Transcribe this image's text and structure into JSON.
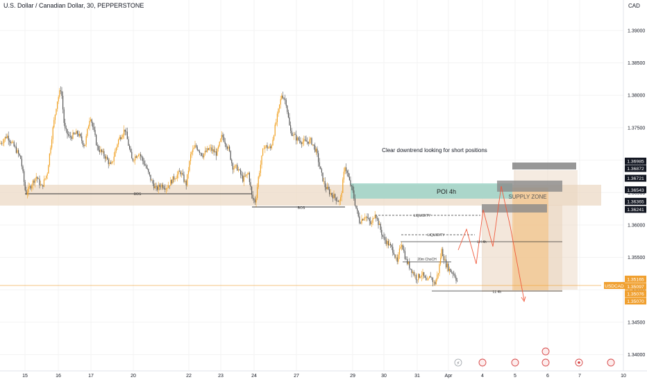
{
  "header": {
    "symbol_title": "U.S. Dollar / Canadian Dollar, 30, PEPPERSTONE",
    "currency": "CAD"
  },
  "chart_data": {
    "type": "candlestick",
    "title": "U.S. Dollar / Canadian Dollar, 30, PEPPERSTONE",
    "symbol": "USDCAD",
    "ylim": [
      1.3375,
      1.3947
    ],
    "y_ticks": [
      "1.39000",
      "1.38500",
      "1.38000",
      "1.37500",
      "1.37000",
      "1.36500",
      "1.36000",
      "1.35500",
      "1.35000",
      "1.34500",
      "1.34000"
    ],
    "x_ticks": [
      "15",
      "16",
      "17",
      "20",
      "22",
      "23",
      "24",
      "27",
      "29",
      "30",
      "31",
      "Apr",
      "4",
      "5",
      "6",
      "7",
      "10"
    ],
    "price_path": [
      [
        0,
        1.3725
      ],
      [
        10,
        1.3738
      ],
      [
        22,
        1.3718
      ],
      [
        30,
        1.3702
      ],
      [
        37,
        1.3648
      ],
      [
        45,
        1.3662
      ],
      [
        52,
        1.3675
      ],
      [
        60,
        1.3658
      ],
      [
        68,
        1.368
      ],
      [
        75,
        1.374
      ],
      [
        82,
        1.379
      ],
      [
        88,
        1.3812
      ],
      [
        93,
        1.3748
      ],
      [
        100,
        1.3735
      ],
      [
        112,
        1.3742
      ],
      [
        122,
        1.3722
      ],
      [
        130,
        1.377
      ],
      [
        140,
        1.372
      ],
      [
        152,
        1.3705
      ],
      [
        160,
        1.369
      ],
      [
        170,
        1.373
      ],
      [
        180,
        1.3748
      ],
      [
        190,
        1.37
      ],
      [
        200,
        1.3712
      ],
      [
        210,
        1.369
      ],
      [
        218,
        1.3668
      ],
      [
        225,
        1.3655
      ],
      [
        232,
        1.3662
      ],
      [
        240,
        1.3658
      ],
      [
        250,
        1.3672
      ],
      [
        260,
        1.3682
      ],
      [
        268,
        1.3662
      ],
      [
        275,
        1.371
      ],
      [
        282,
        1.3722
      ],
      [
        292,
        1.3708
      ],
      [
        302,
        1.3718
      ],
      [
        312,
        1.371
      ],
      [
        320,
        1.3738
      ],
      [
        330,
        1.3715
      ],
      [
        335,
        1.369
      ],
      [
        342,
        1.3688
      ],
      [
        350,
        1.367
      ],
      [
        358,
        1.368
      ],
      [
        363,
        1.3642
      ],
      [
        368,
        1.3636
      ],
      [
        372,
        1.3672
      ],
      [
        380,
        1.3722
      ],
      [
        390,
        1.3718
      ],
      [
        398,
        1.376
      ],
      [
        406,
        1.3802
      ],
      [
        412,
        1.379
      ],
      [
        418,
        1.3745
      ],
      [
        428,
        1.3732
      ],
      [
        438,
        1.3728
      ],
      [
        448,
        1.373
      ],
      [
        456,
        1.3712
      ],
      [
        462,
        1.3682
      ],
      [
        468,
        1.366
      ],
      [
        475,
        1.365
      ],
      [
        483,
        1.3642
      ],
      [
        490,
        1.3635
      ],
      [
        497,
        1.3692
      ],
      [
        503,
        1.3668
      ],
      [
        508,
        1.3652
      ],
      [
        512,
        1.363
      ],
      [
        518,
        1.3605
      ],
      [
        526,
        1.3615
      ],
      [
        535,
        1.36
      ],
      [
        540,
        1.362
      ],
      [
        546,
        1.36
      ],
      [
        552,
        1.358
      ],
      [
        560,
        1.357
      ],
      [
        567,
        1.356
      ],
      [
        572,
        1.354
      ],
      [
        578,
        1.3575
      ],
      [
        585,
        1.3545
      ],
      [
        592,
        1.3532
      ],
      [
        600,
        1.3518
      ],
      [
        608,
        1.3525
      ],
      [
        615,
        1.351
      ],
      [
        620,
        1.3522
      ],
      [
        626,
        1.3508
      ],
      [
        632,
        1.353
      ],
      [
        636,
        1.3562
      ],
      [
        642,
        1.354
      ],
      [
        648,
        1.353
      ],
      [
        654,
        1.3525
      ],
      [
        660,
        1.351
      ]
    ],
    "last_price": "1.35165",
    "price_labels": [
      {
        "text": "1.36985",
        "value": 1.36985,
        "style": "dark"
      },
      {
        "text": "1.36872",
        "value": 1.36872,
        "style": "dark"
      },
      {
        "text": "1.36721",
        "value": 1.36721,
        "style": "dark"
      },
      {
        "text": "1.36543",
        "value": 1.36543,
        "style": "dark"
      },
      {
        "text": "1.36365",
        "value": 1.36365,
        "style": "dark"
      },
      {
        "text": "1.36241",
        "value": 1.36241,
        "style": "dark"
      },
      {
        "text": "1.35165",
        "value": 1.35165,
        "style": "orange",
        "tag": "USDCAD"
      },
      {
        "text": "1.35097",
        "value": 1.35097,
        "style": "orange"
      },
      {
        "text": "1.35076",
        "value": 1.35076,
        "style": "orange"
      },
      {
        "text": "1.35070",
        "value": 1.3507,
        "style": "orange"
      }
    ],
    "annotations": {
      "note": "Clear downtrend looking for short positions",
      "poi": "POI 4h",
      "supply_zone": "SUPPLY ZONE",
      "bos_1": "BOS",
      "bos_2": "BOS",
      "liquidity_1": "LIQUIDITY",
      "liquidity_2": "LIQUIDITY",
      "lh": "LH 4h",
      "choch": "20m ChoCH",
      "ll": "LL 4h"
    },
    "event_icons": [
      "lightning-event",
      "us-flag-event",
      "us-flag-event",
      "us-flag-event",
      "us-flag-event",
      "ca-flag-event",
      "us-flag-event"
    ],
    "colors": {
      "candle": "#555555",
      "candle_accent": "#f0a020",
      "zone_beige": "#ecd9c6",
      "poi_teal": "#9fd4c8",
      "forecast_red": "#f05a3c",
      "supply_orange": "#f6c07a",
      "last_price_line": "#f0a030",
      "grid": "#f3f3f3"
    }
  }
}
